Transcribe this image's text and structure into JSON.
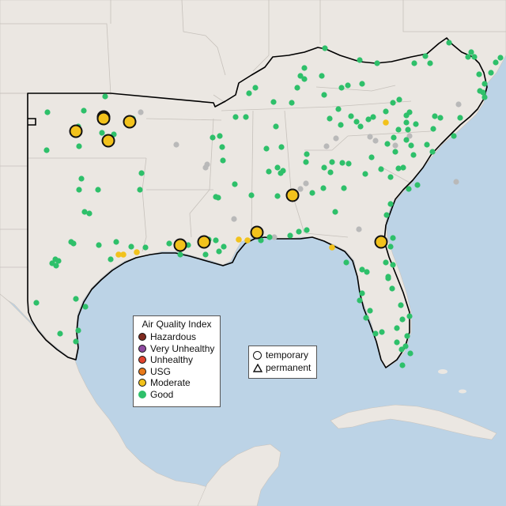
{
  "legend": {
    "title": "Air Quality Index",
    "categories": [
      {
        "label": "Hazardous",
        "color": "#7e2a1f"
      },
      {
        "label": "Very Unhealthy",
        "color": "#8e4ba1"
      },
      {
        "label": "Unhealthy",
        "color": "#e1442f"
      },
      {
        "label": "USG",
        "color": "#e87a1b"
      },
      {
        "label": "Moderate",
        "color": "#f2c21c"
      },
      {
        "label": "Good",
        "color": "#2ec06a"
      }
    ]
  },
  "monitor_legend": {
    "temporary": "temporary",
    "permanent": "permanent"
  },
  "colors": {
    "water": "#bcd3e6",
    "land": "#ebe7e2",
    "no_data": "#b9b9b9",
    "border": "#000000"
  }
}
